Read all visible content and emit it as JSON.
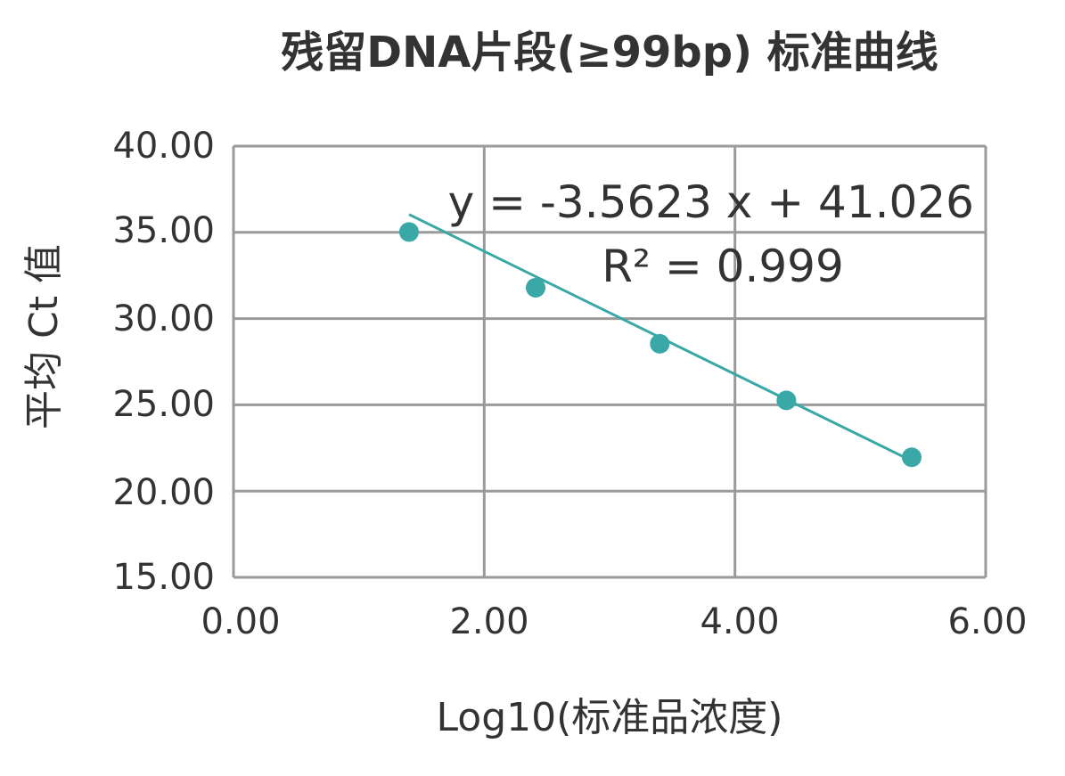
{
  "chart_data": {
    "type": "scatter",
    "title": "残留DNA片段(≥99bp) 标准曲线",
    "xlabel": "Log10(标准品浓度)",
    "ylabel": "平均 Ct 值",
    "xlim": [
      0,
      6
    ],
    "ylim": [
      15,
      40
    ],
    "xticks": [
      "0.00",
      "2.00",
      "4.00",
      "6.00"
    ],
    "yticks": [
      "15.00",
      "20.00",
      "25.00",
      "30.00",
      "35.00",
      "40.00"
    ],
    "grid": true,
    "x": [
      1.4,
      2.41,
      3.4,
      4.41,
      5.41
    ],
    "y": [
      35.02,
      31.79,
      28.54,
      25.26,
      21.96
    ],
    "trendline": {
      "slope": -3.5623,
      "intercept": 41.026,
      "x_range": [
        1.4,
        5.41
      ]
    },
    "equation": "y = -3.5623 x  + 41.026",
    "r_squared": "R² = 0.999",
    "series_color": "#3aa8a6"
  }
}
